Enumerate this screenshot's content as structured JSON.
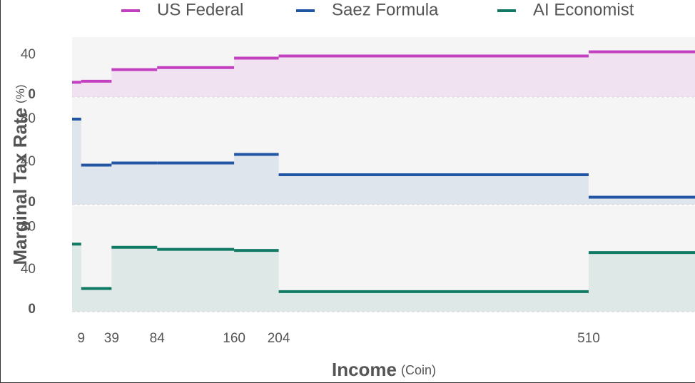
{
  "chart_data": {
    "type": "step-panels",
    "xlabel": "Income",
    "xlabel_unit": "(Coin)",
    "ylabel": "Marginal Tax Rate",
    "ylabel_unit": "(%)",
    "x": [
      0,
      9,
      39,
      84,
      160,
      204,
      510
    ],
    "xlim": [
      0,
      615
    ],
    "xticks": [
      9,
      39,
      84,
      160,
      204,
      510
    ],
    "series": [
      {
        "name": "US Federal",
        "color": "#c23fc0",
        "values": [
          14,
          15,
          26,
          28,
          37,
          39,
          43
        ],
        "ylim": [
          0,
          57
        ],
        "yticks": [
          0,
          40
        ]
      },
      {
        "name": "Saez Formula",
        "color": "#2255a4",
        "values": [
          80,
          37,
          39,
          39,
          47,
          28,
          7
        ],
        "ylim": [
          0,
          100
        ],
        "yticks": [
          0,
          40,
          80
        ]
      },
      {
        "name": "AI Economist",
        "color": "#117a65",
        "values": [
          64,
          22,
          61,
          59,
          58,
          19,
          56
        ],
        "ylim": [
          0,
          100
        ],
        "yticks": [
          0,
          40,
          80
        ]
      }
    ]
  }
}
